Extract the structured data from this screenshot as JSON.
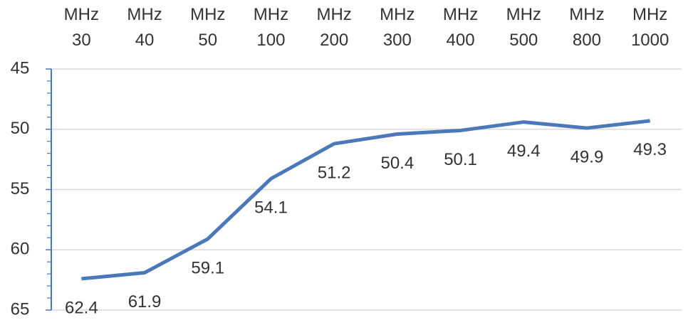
{
  "chart_data": {
    "type": "line",
    "categories": [
      "MHz 30",
      "MHz 40",
      "MHz 50",
      "MHz 100",
      "MHz 200",
      "MHz 300",
      "MHz 400",
      "MHz 500",
      "MHz 800",
      "MHz 1000"
    ],
    "series": [
      {
        "color": "#4a78b8",
        "values": [
          62.4,
          61.9,
          59.1,
          54.1,
          51.2,
          50.4,
          50.1,
          49.4,
          49.9,
          49.3
        ]
      }
    ],
    "ylim": [
      65,
      45
    ],
    "yticks": [
      45,
      50,
      55,
      60,
      65
    ],
    "yminorticks": [
      46,
      47,
      48,
      49,
      51,
      52,
      53,
      54,
      56,
      57,
      58,
      59,
      61,
      62,
      63,
      64
    ],
    "grid": true
  }
}
